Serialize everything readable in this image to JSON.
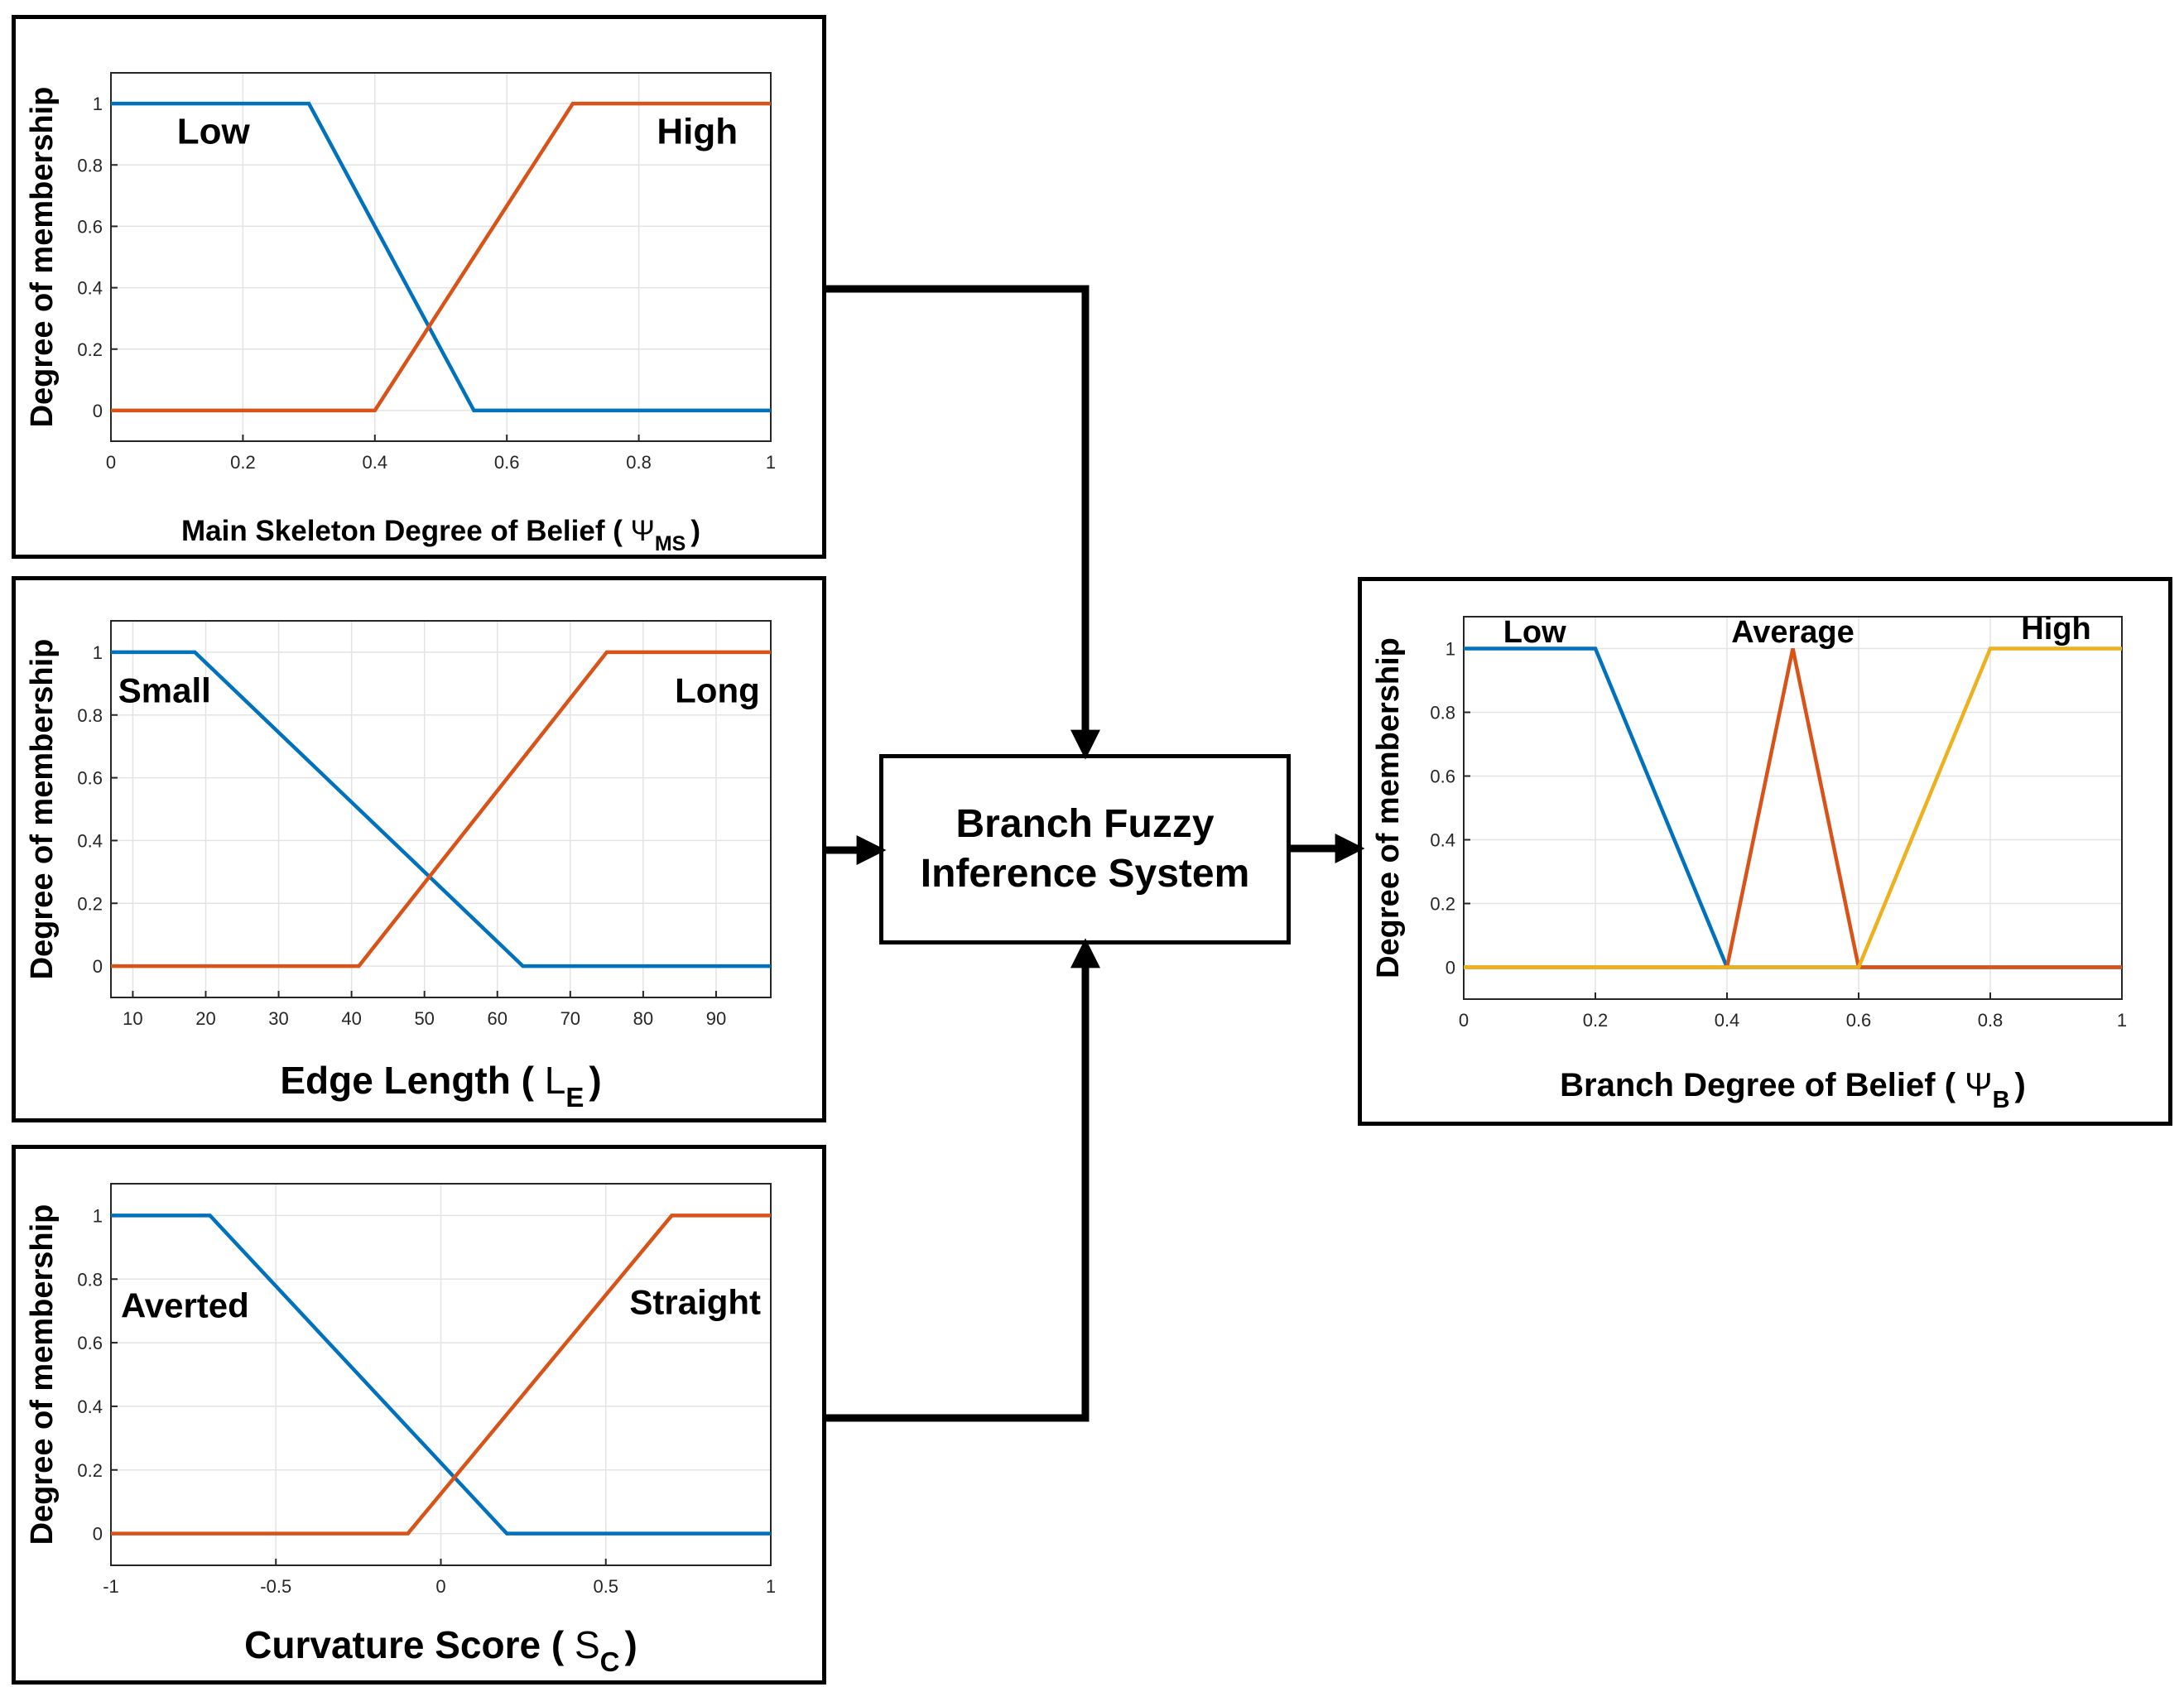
{
  "charts": [
    {
      "id": "ms",
      "ylabel": "Degree of membership",
      "xlabel_main": "Main Skeleton Degree of Belief (",
      "xlabel_symbol": "Ψ",
      "xlabel_sub": "MS",
      "xlabel_close": ")",
      "xlim": [
        0,
        1
      ],
      "ylim": [
        -0.1,
        1.1
      ],
      "xticks": [
        {
          "v": 0,
          "label": "0"
        },
        {
          "v": 0.2,
          "label": "0.2"
        },
        {
          "v": 0.4,
          "label": "0.4"
        },
        {
          "v": 0.6,
          "label": "0.6"
        },
        {
          "v": 0.8,
          "label": "0.8"
        },
        {
          "v": 1,
          "label": "1"
        }
      ],
      "yticks": [
        {
          "v": 0,
          "label": "0"
        },
        {
          "v": 0.2,
          "label": "0.2"
        },
        {
          "v": 0.4,
          "label": "0.4"
        },
        {
          "v": 0.6,
          "label": "0.6"
        },
        {
          "v": 0.8,
          "label": "0.8"
        },
        {
          "v": 1,
          "label": "1"
        }
      ],
      "series": [
        {
          "name": "Low",
          "color": "#0072BD",
          "points": [
            [
              0,
              1
            ],
            [
              0.3,
              1
            ],
            [
              0.55,
              0
            ],
            [
              1,
              0
            ]
          ],
          "label_pos": [
            0.1,
            0.87
          ],
          "label_anchor": "start"
        },
        {
          "name": "High",
          "color": "#D95319",
          "points": [
            [
              0,
              0
            ],
            [
              0.4,
              0
            ],
            [
              0.7,
              1
            ],
            [
              1,
              1
            ]
          ],
          "label_pos": [
            0.95,
            0.87
          ],
          "label_anchor": "end"
        }
      ]
    },
    {
      "id": "le",
      "ylabel": "Degree of membership",
      "xlabel_main": "Edge Length (",
      "xlabel_symbol": "L",
      "xlabel_sub": "E",
      "xlabel_close": ")",
      "xlim": [
        7,
        97.5
      ],
      "ylim": [
        -0.1,
        1.1
      ],
      "xticks": [
        {
          "v": 10,
          "label": "10"
        },
        {
          "v": 20,
          "label": "20"
        },
        {
          "v": 30,
          "label": "30"
        },
        {
          "v": 40,
          "label": "40"
        },
        {
          "v": 50,
          "label": "50"
        },
        {
          "v": 60,
          "label": "60"
        },
        {
          "v": 70,
          "label": "70"
        },
        {
          "v": 80,
          "label": "80"
        },
        {
          "v": 90,
          "label": "90"
        }
      ],
      "yticks": [
        {
          "v": 0,
          "label": "0"
        },
        {
          "v": 0.2,
          "label": "0.2"
        },
        {
          "v": 0.4,
          "label": "0.4"
        },
        {
          "v": 0.6,
          "label": "0.6"
        },
        {
          "v": 0.8,
          "label": "0.8"
        },
        {
          "v": 1,
          "label": "1"
        }
      ],
      "series": [
        {
          "name": "Small",
          "color": "#0072BD",
          "points": [
            [
              7,
              1
            ],
            [
              18.5,
              1
            ],
            [
              63.5,
              0
            ],
            [
              97.5,
              0
            ]
          ],
          "label_pos": [
            8,
            0.84
          ],
          "label_anchor": "start"
        },
        {
          "name": "Long",
          "color": "#D95319",
          "points": [
            [
              7,
              0
            ],
            [
              41,
              0
            ],
            [
              75,
              1
            ],
            [
              97.5,
              1
            ]
          ],
          "label_pos": [
            96,
            0.84
          ],
          "label_anchor": "end"
        }
      ]
    },
    {
      "id": "sc",
      "ylabel": "Degree of membership",
      "xlabel_main": "Curvature Score (",
      "xlabel_symbol": "S",
      "xlabel_sub": "C",
      "xlabel_close": ")",
      "xlim": [
        -1,
        1
      ],
      "ylim": [
        -0.1,
        1.1
      ],
      "xticks": [
        {
          "v": -1,
          "label": "-1"
        },
        {
          "v": -0.5,
          "label": "-0.5"
        },
        {
          "v": 0,
          "label": "0"
        },
        {
          "v": 0.5,
          "label": "0.5"
        },
        {
          "v": 1,
          "label": "1"
        }
      ],
      "yticks": [
        {
          "v": 0,
          "label": "0"
        },
        {
          "v": 0.2,
          "label": "0.2"
        },
        {
          "v": 0.4,
          "label": "0.4"
        },
        {
          "v": 0.6,
          "label": "0.6"
        },
        {
          "v": 0.8,
          "label": "0.8"
        },
        {
          "v": 1,
          "label": "1"
        }
      ],
      "series": [
        {
          "name": "Averted",
          "color": "#0072BD",
          "points": [
            [
              -1,
              1
            ],
            [
              -0.7,
              1
            ],
            [
              0.2,
              0
            ],
            [
              1,
              0
            ]
          ],
          "label_pos": [
            -0.97,
            0.68
          ],
          "label_anchor": "start"
        },
        {
          "name": "Straight",
          "color": "#D95319",
          "points": [
            [
              -1,
              0
            ],
            [
              -0.1,
              0
            ],
            [
              0.7,
              1
            ],
            [
              1,
              1
            ]
          ],
          "label_pos": [
            0.97,
            0.69
          ],
          "label_anchor": "end"
        }
      ]
    },
    {
      "id": "b",
      "ylabel": "Degree of membership",
      "xlabel_main": "Branch Degree of Belief (",
      "xlabel_symbol": "Ψ",
      "xlabel_sub": "B",
      "xlabel_close": ")",
      "xlim": [
        0,
        1
      ],
      "ylim": [
        -0.1,
        1.1
      ],
      "xticks": [
        {
          "v": 0,
          "label": "0"
        },
        {
          "v": 0.2,
          "label": "0.2"
        },
        {
          "v": 0.4,
          "label": "0.4"
        },
        {
          "v": 0.6,
          "label": "0.6"
        },
        {
          "v": 0.8,
          "label": "0.8"
        },
        {
          "v": 1,
          "label": "1"
        }
      ],
      "yticks": [
        {
          "v": 0,
          "label": "0"
        },
        {
          "v": 0.2,
          "label": "0.2"
        },
        {
          "v": 0.4,
          "label": "0.4"
        },
        {
          "v": 0.6,
          "label": "0.6"
        },
        {
          "v": 0.8,
          "label": "0.8"
        },
        {
          "v": 1,
          "label": "1"
        }
      ],
      "series": [
        {
          "name": "Low",
          "color": "#0072BD",
          "points": [
            [
              0,
              1
            ],
            [
              0.2,
              1
            ],
            [
              0.4,
              0
            ],
            [
              1,
              0
            ]
          ],
          "label_pos": [
            0.06,
            1.02
          ],
          "label_anchor": "start"
        },
        {
          "name": "Average",
          "color": "#D95319",
          "points": [
            [
              0,
              0
            ],
            [
              0.4,
              0
            ],
            [
              0.5,
              1
            ],
            [
              0.6,
              0
            ],
            [
              1,
              0
            ]
          ],
          "label_pos": [
            0.5,
            1.02
          ],
          "label_anchor": "middle"
        },
        {
          "name": "High",
          "color": "#EDB120",
          "points": [
            [
              0,
              0
            ],
            [
              0.6,
              0
            ],
            [
              0.8,
              1
            ],
            [
              1,
              1
            ]
          ],
          "label_pos": [
            0.9,
            1.03
          ],
          "label_anchor": "middle"
        }
      ]
    }
  ],
  "fis": {
    "line1": "Branch Fuzzy",
    "line2": "Inference System"
  }
}
